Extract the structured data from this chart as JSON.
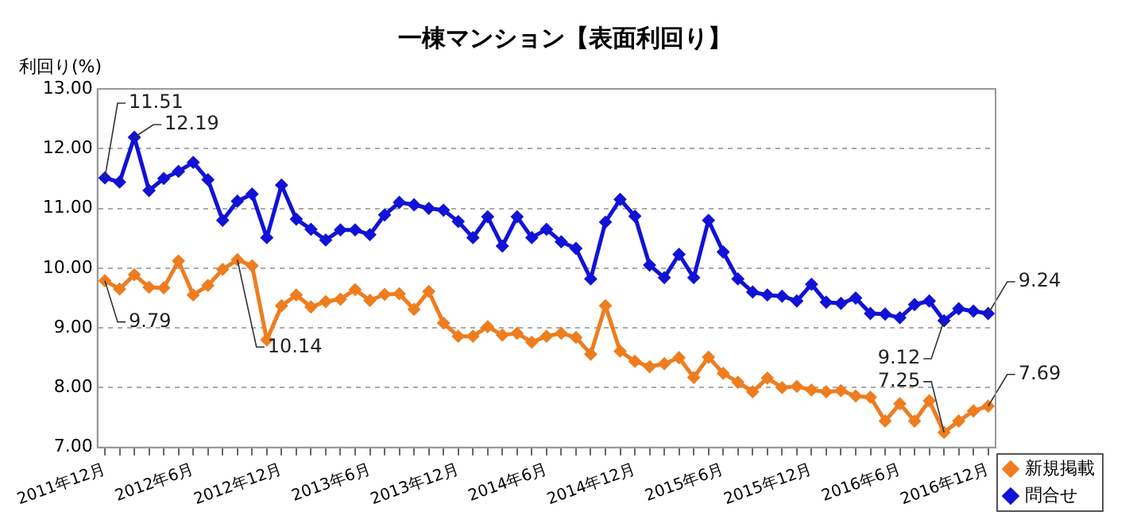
{
  "chart_data": {
    "type": "line",
    "title": "一棟マンション【表面利回り】",
    "ylabel": "利回り(%)",
    "categories": [
      "2011年12月",
      null,
      null,
      null,
      null,
      null,
      "2012年6月",
      null,
      null,
      null,
      null,
      null,
      "2012年12月",
      null,
      null,
      null,
      null,
      null,
      "2013年6月",
      null,
      null,
      null,
      null,
      null,
      "2013年12月",
      null,
      null,
      null,
      null,
      null,
      "2014年6月",
      null,
      null,
      null,
      null,
      null,
      "2014年12月",
      null,
      null,
      null,
      null,
      null,
      "2015年6月",
      null,
      null,
      null,
      null,
      null,
      "2015年12月",
      null,
      null,
      null,
      null,
      null,
      "2016年6月",
      null,
      null,
      null,
      null,
      null,
      "2016年12月"
    ],
    "series": [
      {
        "name": "新規掲載",
        "color": "#ee7d1f",
        "values": [
          9.79,
          9.65,
          9.89,
          9.68,
          9.67,
          10.12,
          9.55,
          9.71,
          9.98,
          10.14,
          10.04,
          8.8,
          9.37,
          9.55,
          9.35,
          9.44,
          9.48,
          9.64,
          9.46,
          9.56,
          9.57,
          9.31,
          9.61,
          9.08,
          8.86,
          8.86,
          9.02,
          8.88,
          8.91,
          8.76,
          8.86,
          8.91,
          8.84,
          8.56,
          9.37,
          8.61,
          8.44,
          8.35,
          8.4,
          8.5,
          8.17,
          8.51,
          8.24,
          8.09,
          7.93,
          8.16,
          8.0,
          8.02,
          7.96,
          7.93,
          7.95,
          7.86,
          7.84,
          7.44,
          7.73,
          7.44,
          7.78,
          7.25,
          7.44,
          7.61,
          7.69
        ],
        "value_labels": [
          "9.79",
          null,
          null,
          null,
          null,
          null,
          null,
          null,
          null,
          "10.14",
          null,
          null,
          null,
          null,
          null,
          null,
          null,
          null,
          null,
          null,
          null,
          null,
          null,
          null,
          null,
          null,
          null,
          null,
          null,
          null,
          null,
          null,
          null,
          null,
          null,
          null,
          null,
          null,
          null,
          null,
          null,
          null,
          null,
          null,
          null,
          null,
          null,
          null,
          null,
          null,
          null,
          null,
          null,
          null,
          null,
          null,
          null,
          "7.25",
          null,
          null,
          "7.69"
        ]
      },
      {
        "name": "問合せ",
        "color": "#1212d6",
        "values": [
          11.51,
          11.44,
          12.19,
          11.3,
          11.5,
          11.62,
          11.77,
          11.48,
          10.8,
          11.12,
          11.24,
          10.51,
          11.39,
          10.82,
          10.65,
          10.47,
          10.64,
          10.64,
          10.56,
          10.89,
          11.1,
          11.06,
          11.0,
          10.97,
          10.78,
          10.51,
          10.86,
          10.37,
          10.86,
          10.51,
          10.65,
          10.44,
          10.33,
          9.82,
          10.77,
          11.15,
          10.87,
          10.05,
          9.84,
          10.23,
          9.84,
          10.8,
          10.27,
          9.82,
          9.6,
          9.55,
          9.53,
          9.45,
          9.73,
          9.43,
          9.41,
          9.5,
          9.24,
          9.23,
          9.17,
          9.39,
          9.45,
          9.12,
          9.32,
          9.28,
          9.24
        ],
        "value_labels": [
          "11.51",
          null,
          "12.19",
          null,
          null,
          null,
          null,
          null,
          null,
          null,
          null,
          null,
          null,
          null,
          null,
          null,
          null,
          null,
          null,
          null,
          null,
          null,
          null,
          null,
          null,
          null,
          null,
          null,
          null,
          null,
          null,
          null,
          null,
          null,
          null,
          null,
          null,
          null,
          null,
          null,
          null,
          null,
          null,
          null,
          null,
          null,
          null,
          null,
          null,
          null,
          null,
          null,
          null,
          null,
          null,
          null,
          null,
          "9.12",
          null,
          null,
          "9.24"
        ]
      }
    ],
    "ylim": [
      7,
      13
    ],
    "yticks": [
      {
        "value": 7,
        "label": "7.00"
      },
      {
        "value": 8,
        "label": "8.00"
      },
      {
        "value": 9,
        "label": "9.00"
      },
      {
        "value": 10,
        "label": "10.00"
      },
      {
        "value": 11,
        "label": "11.00"
      },
      {
        "value": 12,
        "label": "12.00"
      },
      {
        "value": 13,
        "label": "13.00"
      }
    ],
    "grid": "y",
    "legend": "bottom right",
    "marker": "diamond",
    "line_style": "solid"
  }
}
